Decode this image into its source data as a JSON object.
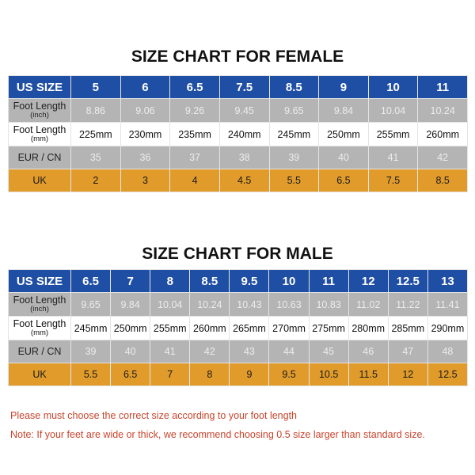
{
  "female": {
    "title": "SIZE CHART FOR FEMALE",
    "labels": {
      "us": "US SIZE",
      "inch_main": "Foot Length",
      "inch_unit": "(inch)",
      "mm_main": "Foot Length",
      "mm_unit": "(mm)",
      "eur": "EUR / CN",
      "uk": "UK"
    },
    "us": [
      "5",
      "6",
      "6.5",
      "7.5",
      "8.5",
      "9",
      "10",
      "11"
    ],
    "inch": [
      "8.86",
      "9.06",
      "9.26",
      "9.45",
      "9.65",
      "9.84",
      "10.04",
      "10.24"
    ],
    "mm": [
      "225mm",
      "230mm",
      "235mm",
      "240mm",
      "245mm",
      "250mm",
      "255mm",
      "260mm"
    ],
    "eur": [
      "35",
      "36",
      "37",
      "38",
      "39",
      "40",
      "41",
      "42"
    ],
    "uk": [
      "2",
      "3",
      "4",
      "4.5",
      "5.5",
      "6.5",
      "7.5",
      "8.5"
    ]
  },
  "male": {
    "title": "SIZE CHART FOR MALE",
    "labels": {
      "us": "US SIZE",
      "inch_main": "Foot Length",
      "inch_unit": "(inch)",
      "mm_main": "Foot Length",
      "mm_unit": "(mm)",
      "eur": "EUR / CN",
      "uk": "UK"
    },
    "us": [
      "6.5",
      "7",
      "8",
      "8.5",
      "9.5",
      "10",
      "11",
      "12",
      "12.5",
      "13"
    ],
    "inch": [
      "9.65",
      "9.84",
      "10.04",
      "10.24",
      "10.43",
      "10.63",
      "10.83",
      "11.02",
      "11.22",
      "11.41"
    ],
    "mm": [
      "245mm",
      "250mm",
      "255mm",
      "260mm",
      "265mm",
      "270mm",
      "275mm",
      "280mm",
      "285mm",
      "290mm"
    ],
    "eur": [
      "39",
      "40",
      "41",
      "42",
      "43",
      "44",
      "45",
      "46",
      "47",
      "48"
    ],
    "uk": [
      "5.5",
      "6.5",
      "7",
      "8",
      "9",
      "9.5",
      "10.5",
      "11.5",
      "12",
      "12.5"
    ]
  },
  "notes": [
    "Please must choose the correct size  according to your foot length",
    "Note: If your feet are wide or thick, we recommend choosing 0.5 size larger than standard size."
  ],
  "colors": {
    "header": "#1f4ea5",
    "grey_row": "#b4b4b4",
    "uk_row": "#e09b2b",
    "note_text": "#c8432b"
  }
}
